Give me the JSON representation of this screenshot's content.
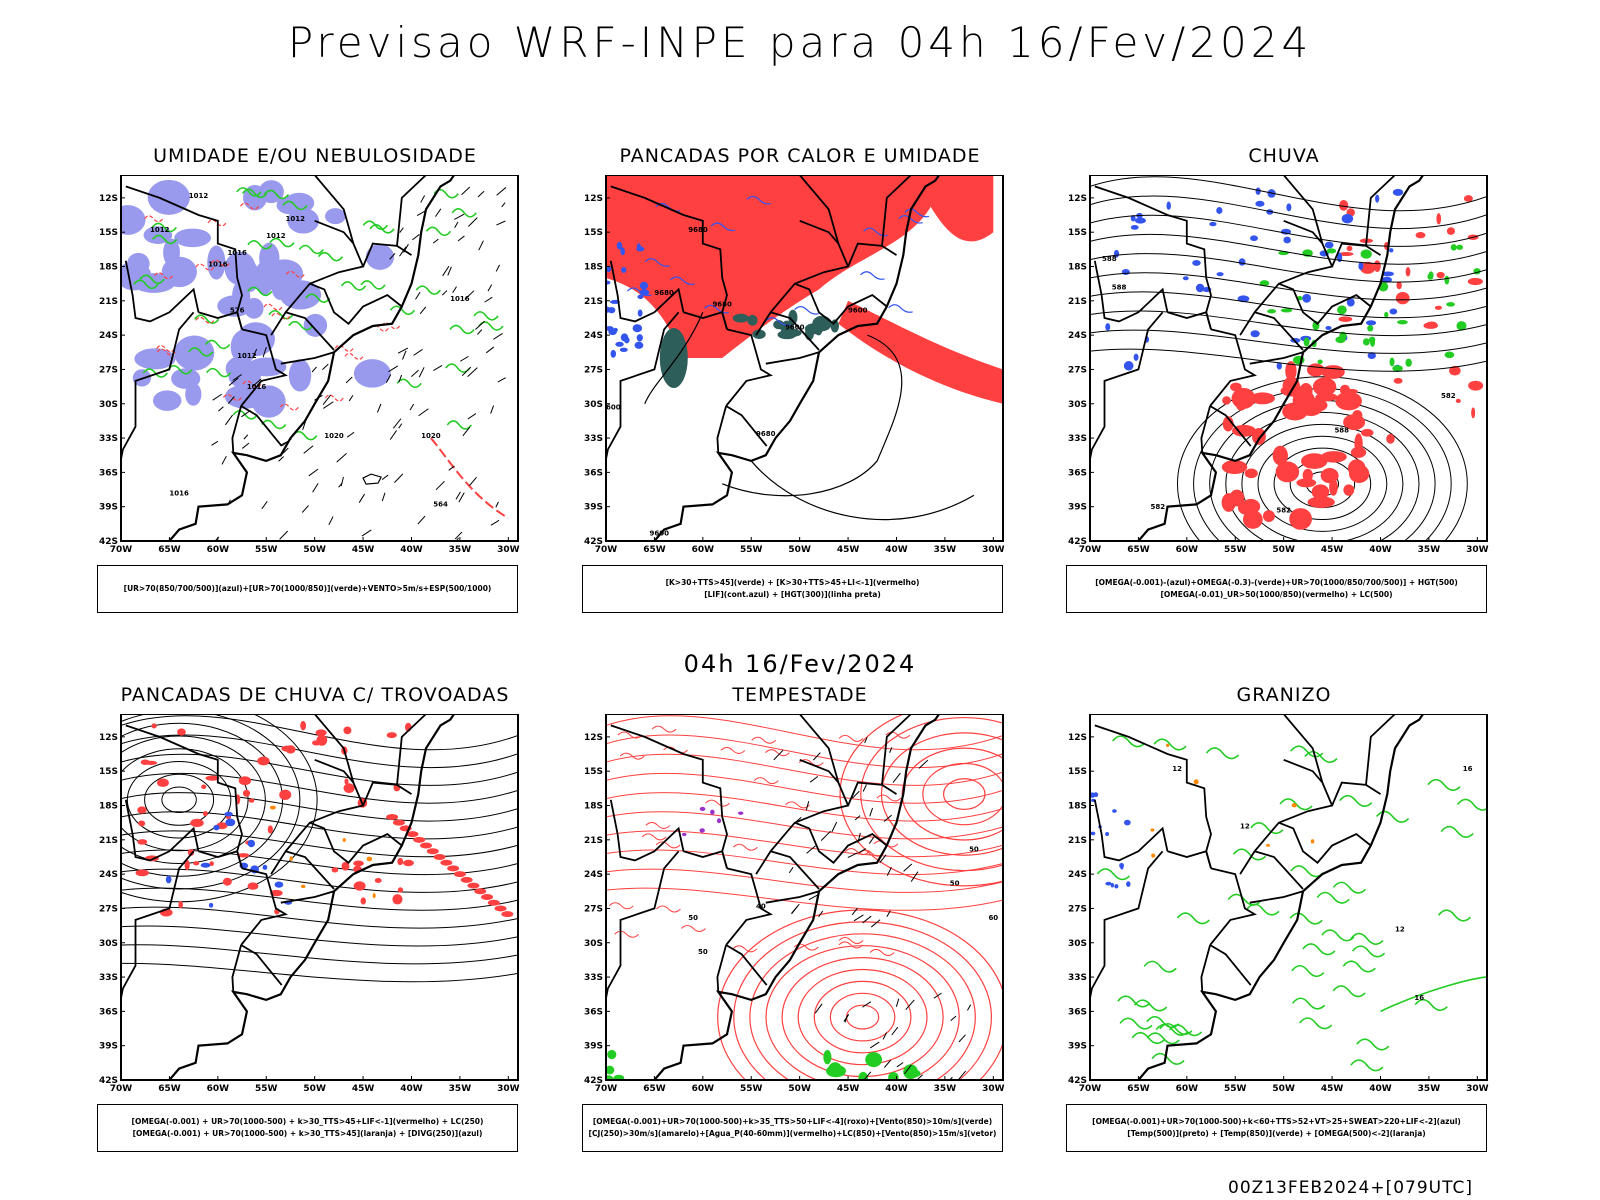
{
  "title": "Previsao WRF-INPE  para 04h 16/Fev/2024",
  "mid_title": "04h 16/Fev/2024",
  "footer": "00Z13FEB2024+[079UTC]",
  "lat_ticks": [
    "12S",
    "15S",
    "18S",
    "21S",
    "24S",
    "27S",
    "30S",
    "33S",
    "36S",
    "39S",
    "42S"
  ],
  "lon_ticks": [
    "70W",
    "65W",
    "60W",
    "55W",
    "50W",
    "45W",
    "40W",
    "35W",
    "30W"
  ],
  "colors": {
    "red": "#ff4040",
    "green": "#22cc22",
    "blue": "#3355ee",
    "lavender": "#9999ee",
    "darkteal": "#2e5e5a",
    "orange": "#ff8800",
    "purple": "#9933cc"
  },
  "panels": [
    {
      "id": "umidade",
      "title": "UMIDADE E/OU NEBULOSIDADE",
      "legend": [
        "[UR>70(850/700/500)](azul)+[UR>70(1000/850)](verde)+VENTO>5m/s+ESP(500/1000)"
      ],
      "map_labels": [
        "1012",
        "1012",
        "1016",
        "1016",
        "1012",
        "1012",
        "1016",
        "1012",
        "1016",
        "1020",
        "1016",
        "1020",
        "564",
        "576"
      ]
    },
    {
      "id": "pancadas-calor",
      "title": "PANCADAS POR CALOR E UMIDADE",
      "legend": [
        "[K>30+TTS>45](verde) + [K>30+TTS>45+LI<-1](vermelho)",
        "[LIF](cont.azul) + [HGT(300)](linha preta)"
      ],
      "map_labels": [
        "9680",
        "9680",
        "9680",
        "9600",
        "9600",
        "9680",
        "9600",
        "9600"
      ]
    },
    {
      "id": "chuva",
      "title": "CHUVA",
      "legend": [
        "[OMEGA(-0.001)-(azul)+OMEGA(-0.3)-(verde)+UR>70(1000/850/700/500)] + HGT(500)",
        "[OMEGA(-0.01)_UR>50(1000/850)(vermelho) + LC(500)"
      ],
      "map_labels": [
        "582",
        "582",
        "588",
        "582",
        "588",
        "588"
      ]
    },
    {
      "id": "trovoadas",
      "title": "PANCADAS DE CHUVA C/ TROVOADAS",
      "legend": [
        "[OMEGA(-0.001) + UR>70(1000-500) + k>30_TTS>45+LIF<-1](vermelho) + LC(250)",
        "[OMEGA(-0.001) + UR>70(1000-500) + k>30_TTS>45](laranja) + [DIVG(250)](azul)"
      ],
      "map_labels": []
    },
    {
      "id": "tempestade",
      "title": "TEMPESTADE",
      "legend": [
        "[OMEGA(-0.001)+UR>70(1000-500)+k>35_TTS>50+LIF<-4](roxo)+[Vento(850)>10m/s](verde)",
        "[CJ(250)>30m/s](amarelo)+[Agua_P(40-60mm)](vermelho)+LC(850)+[Vento(850)>15m/s](vetor)"
      ],
      "map_labels": [
        "50",
        "50",
        "40",
        "50",
        "50",
        "60"
      ]
    },
    {
      "id": "granizo",
      "title": "GRANIZO",
      "legend": [
        "[OMEGA(-0.001)+UR>70(1000-500)+k<60+TTS>52+VT>25+SWEAT>220+LIF<-2](azul)",
        "[Temp(500)](preto) + [Temp(850)](verde) + [OMEGA(500)<-2](laranja)"
      ],
      "map_labels": [
        "12",
        "12",
        "12",
        "16",
        "16"
      ]
    }
  ]
}
